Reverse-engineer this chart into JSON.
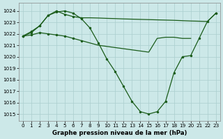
{
  "xlabel": "Graphe pression niveau de la mer (hPa)",
  "ylim": [
    1014.4,
    1024.7
  ],
  "xlim": [
    -0.5,
    23.5
  ],
  "yticks": [
    1015,
    1016,
    1017,
    1018,
    1019,
    1020,
    1021,
    1022,
    1023,
    1024
  ],
  "xticks": [
    0,
    1,
    2,
    3,
    4,
    5,
    6,
    7,
    8,
    9,
    10,
    11,
    12,
    13,
    14,
    15,
    16,
    17,
    18,
    19,
    20,
    21,
    22,
    23
  ],
  "bg_color": "#cce8e8",
  "grid_color": "#aacece",
  "line_color": "#1a5c1a",
  "curve_main_x": [
    0,
    1,
    2,
    3,
    4,
    5,
    6,
    7,
    8,
    9,
    10,
    11,
    12,
    13,
    14,
    15,
    16,
    17,
    18,
    19,
    20,
    21,
    22,
    23
  ],
  "curve_main_y": [
    1021.8,
    1022.1,
    1022.7,
    1023.6,
    1023.9,
    1024.0,
    1023.8,
    1023.3,
    1022.5,
    1021.2,
    1019.8,
    1018.7,
    1017.4,
    1016.1,
    1015.2,
    1015.0,
    1015.2,
    1016.1,
    1018.6,
    1020.0,
    1020.1,
    1021.6,
    1023.1,
    1023.8
  ],
  "curve_upper_marked_x": [
    0,
    1,
    2,
    3,
    4,
    5,
    6,
    7
  ],
  "curve_upper_marked_y": [
    1021.8,
    1022.2,
    1022.7,
    1023.6,
    1024.0,
    1023.7,
    1023.5,
    1023.4
  ],
  "curve_upper_flat_x": [
    7,
    8,
    9,
    10,
    11,
    12,
    13,
    14,
    15,
    16,
    17,
    18,
    19,
    20,
    21,
    22,
    23
  ],
  "curve_upper_flat_y": [
    1023.4,
    1023.4,
    1023.38,
    1023.35,
    1023.33,
    1023.3,
    1023.28,
    1023.26,
    1023.24,
    1023.22,
    1023.2,
    1023.18,
    1023.15,
    1023.12,
    1023.1,
    1023.08,
    1023.8
  ],
  "curve_lower_x": [
    0,
    1,
    2,
    3,
    4,
    5,
    6,
    7,
    8,
    9,
    10,
    11,
    12,
    13,
    14,
    15,
    16,
    17,
    18,
    19,
    20
  ],
  "curve_lower_y": [
    1021.8,
    1021.9,
    1022.1,
    1022.0,
    1021.9,
    1021.8,
    1021.6,
    1021.4,
    1021.2,
    1021.0,
    1020.9,
    1020.8,
    1020.7,
    1020.6,
    1020.5,
    1020.4,
    1021.6,
    1021.7,
    1021.7,
    1021.6,
    1021.6
  ],
  "marker_size": 2.5,
  "line_width": 0.9,
  "tick_fontsize": 5.2,
  "label_fontsize": 6.2
}
